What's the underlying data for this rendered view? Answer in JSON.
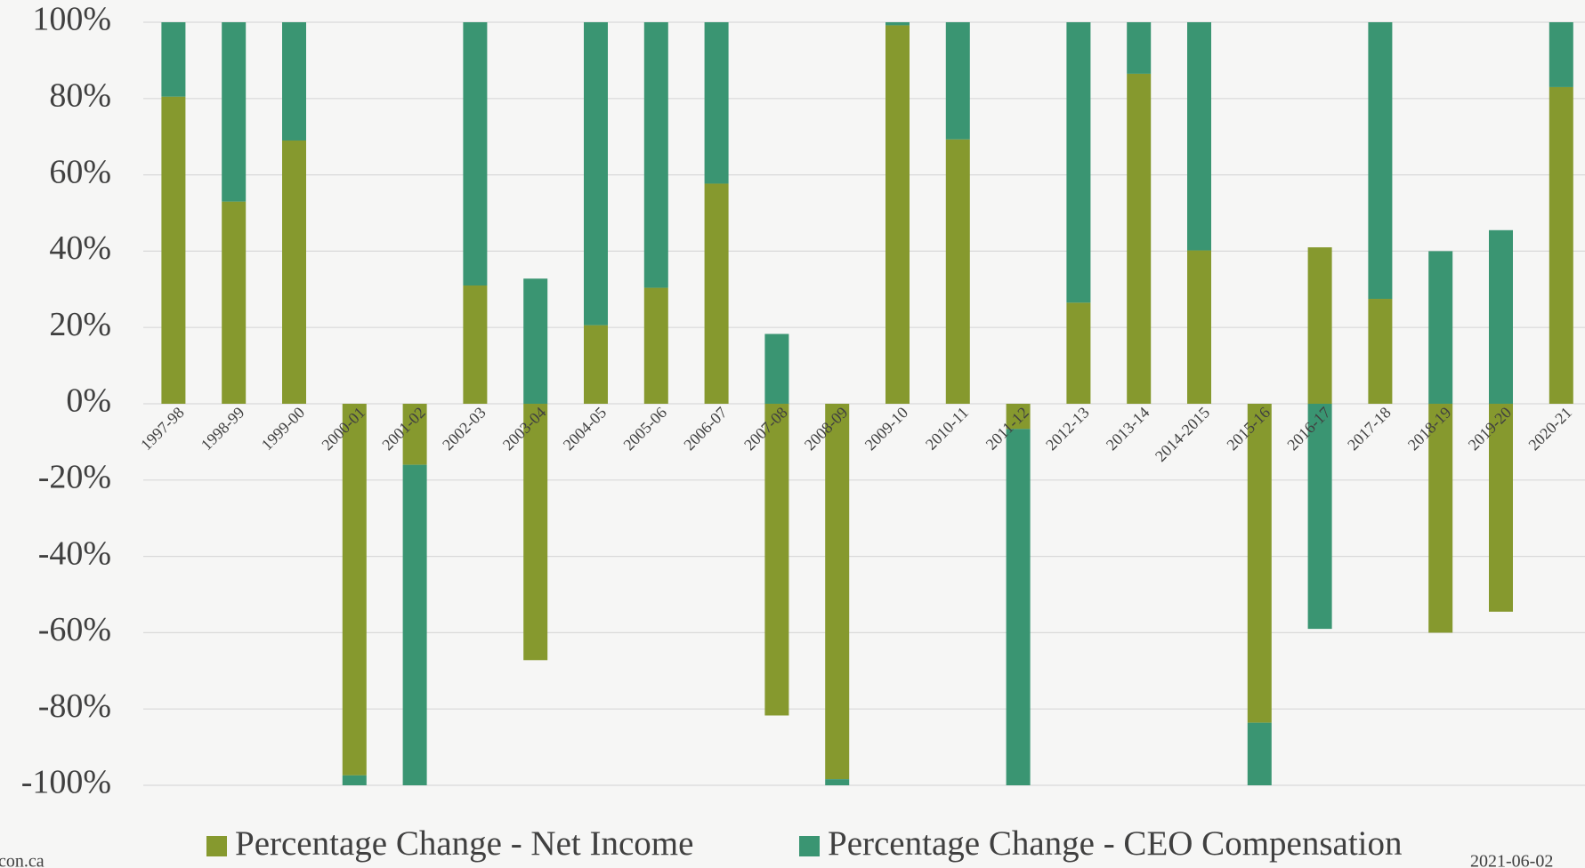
{
  "chart_data": {
    "type": "stacked-bar",
    "categories": [
      "1997-98",
      "1998-99",
      "1999-00",
      "2000-01",
      "2001-02",
      "2002-03",
      "2003-04",
      "2004-05",
      "2005-06",
      "2006-07",
      "2007-08",
      "2008-09",
      "2009-10",
      "2010-11",
      "2011-12",
      "2012-13",
      "2013-14",
      "2014-2015",
      "2015-16",
      "2016-17",
      "2017-18",
      "2018-19",
      "2019-20",
      "2020-21"
    ],
    "series": [
      {
        "name": "Percentage Change - Net Income",
        "color": "#86992e",
        "values": [
          80.5,
          53,
          69,
          -97.4,
          -16,
          31,
          -67.2,
          20.6,
          30.4,
          57.7,
          -81.7,
          -98.4,
          99.2,
          69.3,
          -6.6,
          26.5,
          86.5,
          40.2,
          -83.6,
          41,
          27.5,
          -60,
          -54.5,
          83
        ]
      },
      {
        "name": "Percentage Change - CEO Compensation",
        "color": "#3a9572",
        "values": [
          19.5,
          47,
          31,
          -2.6,
          -84,
          69,
          32.8,
          79.4,
          69.6,
          42.3,
          18.3,
          -1.6,
          0.8,
          30.7,
          -93.4,
          73.5,
          13.5,
          59.8,
          -16.4,
          -59,
          72.5,
          40,
          45.5,
          17
        ]
      }
    ],
    "ylim": [
      -100,
      100
    ],
    "yticks": [
      {
        "value": -100,
        "label": "-100%"
      },
      {
        "value": -80,
        "label": "-80%"
      },
      {
        "value": -60,
        "label": "-60%"
      },
      {
        "value": -40,
        "label": "-40%"
      },
      {
        "value": -20,
        "label": "-20%"
      },
      {
        "value": 0,
        "label": "0%"
      },
      {
        "value": 20,
        "label": "20%"
      },
      {
        "value": 40,
        "label": "40%"
      },
      {
        "value": 60,
        "label": "60%"
      },
      {
        "value": 80,
        "label": "80%"
      },
      {
        "value": 100,
        "label": "100%"
      }
    ],
    "grid": true,
    "legend": "bottom",
    "source": "con.ca",
    "date": "2021-06-02"
  }
}
